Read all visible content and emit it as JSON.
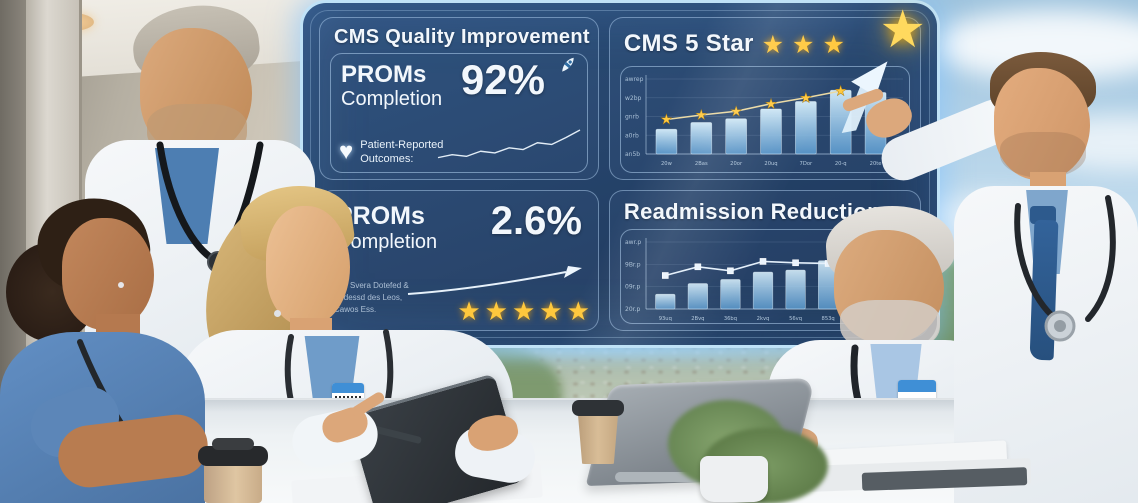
{
  "glyphs": {
    "star": "★",
    "heart": "♥"
  },
  "dashboard": {
    "quality": {
      "title": "CMS Quality Improvement",
      "metric_label_line1": "PROMs",
      "metric_label_line2": "Completion",
      "metric_value": "92%",
      "note_line1": "Patient-Reported",
      "note_line2": "Outcomes:"
    },
    "cms5": {
      "title": "CMS 5 Star",
      "star_count_small": 3,
      "star_count_large": 1
    },
    "proms2": {
      "label_line1": "PROMs",
      "label_line2": "Completion",
      "value": "2.6%",
      "star_count": 5,
      "fineprint": [
        "Pes Svera Dotefed &",
        "Sodessd des Leos,",
        "Cawos Ess."
      ]
    },
    "readmission": {
      "title": "Readmission Reduction"
    }
  },
  "chart_data": [
    {
      "type": "line",
      "name": "proms-completion-sparkline",
      "y": [
        15,
        22,
        18,
        30,
        26,
        38,
        34,
        50,
        46,
        62,
        80
      ]
    },
    {
      "type": "bar",
      "name": "cms-5-star-trend",
      "values": [
        33,
        42,
        47,
        60,
        70,
        85,
        82
      ],
      "line": [
        46,
        52,
        57,
        67,
        75,
        84
      ],
      "marker": "star",
      "arrow": false,
      "xticks": [
        "20w",
        "2Bas",
        "20or",
        "20uq",
        "7Dor",
        "20-q",
        "20te"
      ],
      "yticks": [
        "an5b",
        "a0rb",
        "gnrb",
        "w2bp",
        "awrep"
      ],
      "ylim": [
        0,
        100
      ],
      "grid": true,
      "title": "CMS 5 Star"
    },
    {
      "type": "bar",
      "name": "readmission-reduction-trend",
      "values": [
        22,
        38,
        44,
        55,
        58,
        72,
        88
      ],
      "line": [
        50,
        63,
        57,
        71,
        69,
        68
      ],
      "marker": "square",
      "arrow": true,
      "xticks": [
        "93uq",
        "2Bvq",
        "36bq",
        "2kvq",
        "56vq",
        "853q",
        "0v3q"
      ],
      "yticks": [
        "20r.p",
        "09r.p",
        "9Br.p",
        "awr.p"
      ],
      "ylim": [
        0,
        100
      ],
      "grid": true,
      "title": "Readmission Reduction"
    }
  ],
  "colors": {
    "dashboard_bg": "#1f4068",
    "dashboard_border": "#bfe3ff",
    "bar_fill_top": "#d6eefb",
    "bar_fill_bottom": "#5e9fd4",
    "star_gold": "#ffc83d",
    "text": "#f2f7fc",
    "scrubs_blue": "#5e93c9",
    "coat_white": "#f2f5f8",
    "shirt_blue": "#6f9cc9",
    "tie_navy": "#2f5d8f"
  }
}
